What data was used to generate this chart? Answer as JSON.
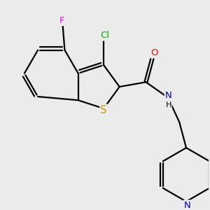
{
  "bg_color": "#ebebeb",
  "bond_color": "#000000",
  "bond_width": 1.6,
  "atom_colors": {
    "S": "#b8a000",
    "N": "#0000cc",
    "O": "#ff0000",
    "Cl": "#00aa00",
    "F": "#ff00ff"
  },
  "font_size": 9.5
}
